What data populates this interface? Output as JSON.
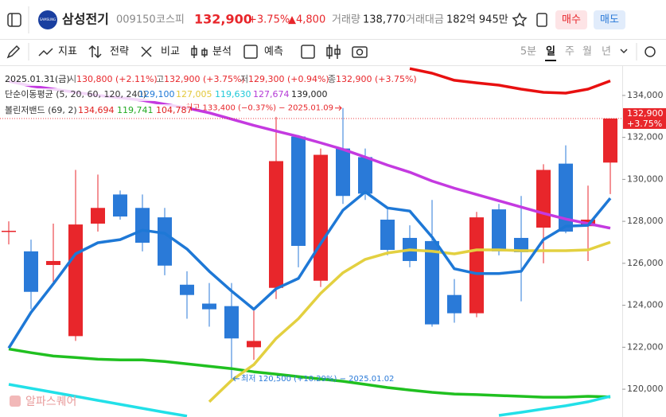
{
  "header": {
    "logo": "SAMSUNG",
    "name": "삼성전기",
    "code": "009150",
    "market": "코스피",
    "price": "132,900",
    "change_pct": "+3.75%",
    "change": "▲4,800",
    "volume_label": "거래량",
    "volume": "138,770",
    "amount_label": "거래대금",
    "amount": "182억 945만",
    "buy": "매수",
    "sell": "매도"
  },
  "toolbar": {
    "items": [
      "지표",
      "전략",
      "비교",
      "분석",
      "예측"
    ],
    "periods": [
      "5분",
      "일",
      "주",
      "월",
      "년"
    ]
  },
  "info": {
    "date": "2025.01.31(금)",
    "fields": [
      {
        "label": "시",
        "value": "130,800 (+2.11%)"
      },
      {
        "label": "고",
        "value": "132,900 (+3.75%)"
      },
      {
        "label": "저",
        "value": "129,300 (+0.94%)"
      },
      {
        "label": "종",
        "value": "132,900 (+3.75%)"
      }
    ]
  },
  "indicators": [
    {
      "label": "단순이동평균 (5, 20, 60, 120, 240)",
      "values": [
        "129,100",
        "127,005",
        "119,630",
        "127,674",
        "139,000"
      ],
      "colors": [
        "#1e78d6",
        "#e3c83a",
        "#1ec8d8",
        "#b43ad6",
        "#222222"
      ]
    },
    {
      "label": "볼린저밴드 (69, 2)",
      "values": [
        "134,694",
        "119,741",
        "104,787"
      ],
      "colors": [
        "#e02020",
        "#22aa22",
        "#e02020"
      ]
    }
  ],
  "watermark": "알파스퀘어",
  "chart_data": {
    "type": "candlestick",
    "categories": [
      null,
      null,
      null,
      null,
      null,
      null,
      null,
      null,
      null,
      null,
      null,
      null,
      null,
      null,
      null,
      null,
      null,
      null,
      null,
      null,
      null,
      null,
      null,
      null,
      null,
      null,
      null,
      null
    ],
    "open": [
      127550,
      126570,
      125920,
      122530,
      127890,
      129280,
      128640,
      128190,
      124980,
      124080,
      123960,
      122000,
      124830,
      132040,
      125170,
      131470,
      131060,
      128080,
      127210,
      127060,
      124490,
      123620,
      128570,
      127210,
      127700,
      130750,
      127770,
      130800
    ],
    "high": [
      128000,
      127130,
      127890,
      130450,
      130230,
      129470,
      129280,
      128640,
      125620,
      125060,
      125060,
      123740,
      132980,
      132110,
      131470,
      133400,
      131470,
      128570,
      127810,
      129020,
      125250,
      128450,
      128830,
      129210,
      130720,
      131620,
      129700,
      132900
    ],
    "low": [
      126900,
      123810,
      125060,
      122300,
      127510,
      128080,
      126570,
      125430,
      123360,
      122980,
      120500,
      121400,
      124300,
      125810,
      124870,
      128830,
      129020,
      126380,
      125810,
      122980,
      123170,
      123430,
      126380,
      124190,
      126000,
      127430,
      126110,
      129300
    ],
    "close": [
      127550,
      124640,
      126110,
      127850,
      128640,
      128230,
      126980,
      125890,
      124490,
      123810,
      122420,
      122300,
      130870,
      126830,
      131170,
      129210,
      129320,
      126640,
      126110,
      123090,
      123620,
      128190,
      126570,
      126530,
      130450,
      127510,
      128080,
      132900
    ],
    "up_color": "#e8262b",
    "down_color": "#2a7ad8",
    "lines": [
      {
        "color": "#e81010",
        "values": [
          null,
          null,
          null,
          null,
          null,
          null,
          null,
          null,
          null,
          null,
          null,
          null,
          null,
          null,
          null,
          null,
          null,
          null,
          135280,
          135060,
          134720,
          134600,
          134490,
          134300,
          134150,
          134110,
          134300,
          134694
        ]
      },
      {
        "color": "#c43ae0",
        "values": [
          134680,
          134450,
          134300,
          134150,
          134000,
          133890,
          133770,
          133580,
          133400,
          133170,
          132870,
          132570,
          132300,
          132040,
          131740,
          131430,
          131060,
          130680,
          130340,
          129920,
          129580,
          129280,
          128980,
          128680,
          128380,
          128110,
          127890,
          127674
        ]
      },
      {
        "color": "#20c020",
        "values": [
          121920,
          121740,
          121580,
          121510,
          121430,
          121400,
          121400,
          121320,
          121210,
          121090,
          120980,
          120830,
          120720,
          120600,
          120490,
          120380,
          120230,
          120080,
          119960,
          119850,
          119770,
          119740,
          119700,
          119660,
          119620,
          119620,
          119660,
          119630
        ]
      },
      {
        "color": "#22e0e8",
        "values": [
          120230,
          120040,
          119850,
          119660,
          119470,
          119280,
          119090,
          118900,
          118720,
          null,
          null,
          null,
          null,
          null,
          null,
          null,
          null,
          null,
          null,
          null,
          null,
          null,
          118750,
          118900,
          119060,
          119210,
          119400,
          119660
        ]
      },
      {
        "color": "#e3d040",
        "values": [
          null,
          null,
          null,
          null,
          null,
          null,
          null,
          null,
          null,
          119400,
          120420,
          121170,
          122420,
          123360,
          124570,
          125550,
          126190,
          126490,
          126640,
          126570,
          126450,
          126640,
          126640,
          126600,
          126600,
          126600,
          126640,
          127005
        ]
      },
      {
        "color": "#1e78d6",
        "values": [
          121960,
          123660,
          125020,
          126450,
          126980,
          127130,
          127580,
          127430,
          126680,
          125620,
          124680,
          123810,
          124790,
          125280,
          126940,
          128530,
          129400,
          128640,
          128490,
          127250,
          125740,
          125510,
          125510,
          125620,
          127130,
          127770,
          127810,
          129100
        ]
      }
    ],
    "ylim": [
      118600,
      135400
    ],
    "yticks": [
      {
        "value": 120000,
        "label": "120,000"
      },
      {
        "value": 122000,
        "label": "122,000"
      },
      {
        "value": 124000,
        "label": "124,000"
      },
      {
        "value": 126000,
        "label": "126,000"
      },
      {
        "value": 128000,
        "label": "128,000"
      },
      {
        "value": 130000,
        "label": "130,000"
      },
      {
        "value": 132000,
        "label": "132,000"
      },
      {
        "value": 134000,
        "label": "134,000"
      }
    ],
    "last_label": "132,900",
    "last_change": "+3.75%",
    "high_note": "최고 133,400 (−0.37%) − 2025.01.09",
    "low_note": "최저 120,500 (+10.29%) − 2025.01.02"
  }
}
